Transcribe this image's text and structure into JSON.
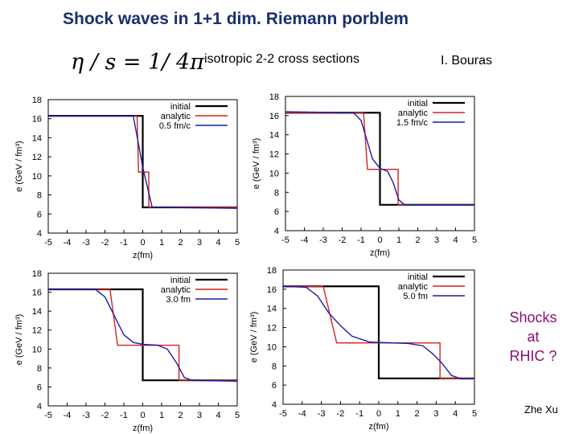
{
  "slide": {
    "title": "Shock waves in 1+1 dim. Riemann porblem",
    "formula": "η / s = 1/ 4π",
    "subtitle": "isotropic 2-2 cross sections",
    "author": "I. Bouras",
    "side_note": [
      "Shocks",
      "at",
      "RHIC ?"
    ],
    "credit": "Zhe Xu"
  },
  "colors": {
    "initial": "#000000",
    "analytic": "#d42020",
    "simulation": "#1a1aa8"
  },
  "chart_data": [
    {
      "type": "line",
      "xlabel": "z(fm)",
      "ylabel": "e (GeV / fm³)",
      "xlim": [
        -5,
        5
      ],
      "ylim": [
        4,
        18
      ],
      "xticks": [
        -5,
        -4,
        -3,
        -2,
        -1,
        0,
        1,
        2,
        3,
        4,
        5
      ],
      "yticks": [
        4,
        6,
        8,
        10,
        12,
        14,
        16,
        18
      ],
      "series": [
        {
          "name": "initial",
          "points": [
            [
              -5,
              16.3
            ],
            [
              0,
              16.3
            ],
            [
              0,
              6.7
            ],
            [
              5,
              6.7
            ]
          ]
        },
        {
          "name": "analytic",
          "points": [
            [
              -5,
              16.3
            ],
            [
              -0.3,
              16.3
            ],
            [
              -0.22,
              10.4
            ],
            [
              0.32,
              10.4
            ],
            [
              0.32,
              6.7
            ],
            [
              5,
              6.7
            ]
          ]
        },
        {
          "name": "0.5 fm/c",
          "points": [
            [
              -5,
              16.3
            ],
            [
              -0.5,
              16.3
            ],
            [
              0,
              10.9
            ],
            [
              0.5,
              6.7
            ],
            [
              5,
              6.6
            ]
          ]
        }
      ]
    },
    {
      "type": "line",
      "xlabel": "z(fm)",
      "ylabel": "e (GeV / fm³)",
      "xlim": [
        -5,
        5
      ],
      "ylim": [
        4,
        18
      ],
      "xticks": [
        -5,
        -4,
        -3,
        -2,
        -1,
        0,
        1,
        2,
        3,
        4,
        5
      ],
      "yticks": [
        4,
        6,
        8,
        10,
        12,
        14,
        16,
        18
      ],
      "series": [
        {
          "name": "initial",
          "points": [
            [
              -5,
              16.3
            ],
            [
              0,
              16.3
            ],
            [
              0,
              6.7
            ],
            [
              5,
              6.7
            ]
          ]
        },
        {
          "name": "analytic",
          "points": [
            [
              -5,
              16.3
            ],
            [
              -0.87,
              16.3
            ],
            [
              -0.66,
              10.4
            ],
            [
              0.96,
              10.4
            ],
            [
              0.96,
              6.7
            ],
            [
              5,
              6.7
            ]
          ]
        },
        {
          "name": "1.5 fm/c",
          "points": [
            [
              -5,
              16.4
            ],
            [
              -1.4,
              16.3
            ],
            [
              -1.0,
              15.5
            ],
            [
              -0.7,
              13.5
            ],
            [
              -0.4,
              11.5
            ],
            [
              0,
              10.5
            ],
            [
              0.4,
              10.2
            ],
            [
              0.7,
              9.0
            ],
            [
              1.0,
              7.2
            ],
            [
              1.3,
              6.7
            ],
            [
              5,
              6.7
            ]
          ]
        }
      ]
    },
    {
      "type": "line",
      "xlabel": "z(fm)",
      "ylabel": "e (GeV / fm³)",
      "xlim": [
        -5,
        5
      ],
      "ylim": [
        4,
        18
      ],
      "xticks": [
        -5,
        -4,
        -3,
        -2,
        -1,
        0,
        1,
        2,
        3,
        4,
        5
      ],
      "yticks": [
        4,
        6,
        8,
        10,
        12,
        14,
        16,
        18
      ],
      "series": [
        {
          "name": "initial",
          "points": [
            [
              -5,
              16.3
            ],
            [
              0,
              16.3
            ],
            [
              0,
              6.7
            ],
            [
              5,
              6.7
            ]
          ]
        },
        {
          "name": "analytic",
          "points": [
            [
              -5,
              16.3
            ],
            [
              -1.73,
              16.3
            ],
            [
              -1.33,
              10.4
            ],
            [
              1.92,
              10.4
            ],
            [
              1.92,
              6.7
            ],
            [
              5,
              6.7
            ]
          ]
        },
        {
          "name": "3.0 fm",
          "points": [
            [
              -5,
              16.3
            ],
            [
              -2.5,
              16.3
            ],
            [
              -2,
              15.5
            ],
            [
              -1.5,
              13.5
            ],
            [
              -1,
              11.5
            ],
            [
              -0.5,
              10.7
            ],
            [
              0,
              10.5
            ],
            [
              0.8,
              10.4
            ],
            [
              1.3,
              10.0
            ],
            [
              1.8,
              8.5
            ],
            [
              2.2,
              7.0
            ],
            [
              2.6,
              6.7
            ],
            [
              5,
              6.6
            ]
          ]
        }
      ]
    },
    {
      "type": "line",
      "xlabel": "z(fm)",
      "ylabel": "e (GeV / fm³)",
      "xlim": [
        -5,
        5
      ],
      "ylim": [
        4,
        18
      ],
      "xticks": [
        -5,
        -4,
        -3,
        -2,
        -1,
        0,
        1,
        2,
        3,
        4,
        5
      ],
      "yticks": [
        4,
        6,
        8,
        10,
        12,
        14,
        16,
        18
      ],
      "series": [
        {
          "name": "initial",
          "points": [
            [
              -5,
              16.3
            ],
            [
              0,
              16.3
            ],
            [
              0,
              6.7
            ],
            [
              5,
              6.7
            ]
          ]
        },
        {
          "name": "analytic",
          "points": [
            [
              -5,
              16.3
            ],
            [
              -2.9,
              16.3
            ],
            [
              -2.2,
              10.4
            ],
            [
              3.2,
              10.4
            ],
            [
              3.2,
              6.7
            ],
            [
              5,
              6.7
            ]
          ]
        },
        {
          "name": "5.0 fm",
          "points": [
            [
              -5,
              16.3
            ],
            [
              -3.8,
              16.2
            ],
            [
              -3.2,
              15.3
            ],
            [
              -2.6,
              13.5
            ],
            [
              -2,
              12.2
            ],
            [
              -1.4,
              11.1
            ],
            [
              -0.5,
              10.5
            ],
            [
              0,
              10.45
            ],
            [
              1.5,
              10.35
            ],
            [
              2.3,
              10.1
            ],
            [
              2.8,
              9.3
            ],
            [
              3.3,
              8.3
            ],
            [
              3.8,
              7.0
            ],
            [
              4.3,
              6.65
            ],
            [
              5,
              6.65
            ]
          ]
        }
      ]
    }
  ]
}
